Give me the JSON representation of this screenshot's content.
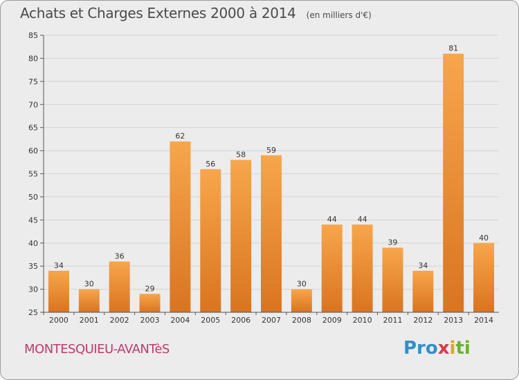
{
  "title": "Achats et Charges Externes 2000 à 2014",
  "unit": "(en milliers d'€)",
  "place": "MONTESQUIEU-AVANTèS",
  "logo": {
    "p1": "Pro",
    "p2": "x",
    "p3": "i",
    "p4": "ti"
  },
  "colors": {
    "bar_top": "#f7a64c",
    "bar_bottom": "#d97420",
    "place": "#c13a6a"
  },
  "chart_data": {
    "type": "bar",
    "title": "Achats et Charges Externes 2000 à 2014",
    "subtitle": "(en milliers d'€)",
    "categories": [
      "2000",
      "2001",
      "2002",
      "2003",
      "2004",
      "2005",
      "2006",
      "2007",
      "2008",
      "2009",
      "2010",
      "2011",
      "2012",
      "2013",
      "2014"
    ],
    "values": [
      34,
      30,
      36,
      29,
      62,
      56,
      58,
      59,
      30,
      44,
      44,
      39,
      34,
      81,
      40
    ],
    "ylim": [
      25,
      85
    ],
    "yticks": [
      25,
      30,
      35,
      40,
      45,
      50,
      55,
      60,
      65,
      70,
      75,
      80,
      85
    ],
    "grid": true,
    "xlabel": "",
    "ylabel": ""
  }
}
